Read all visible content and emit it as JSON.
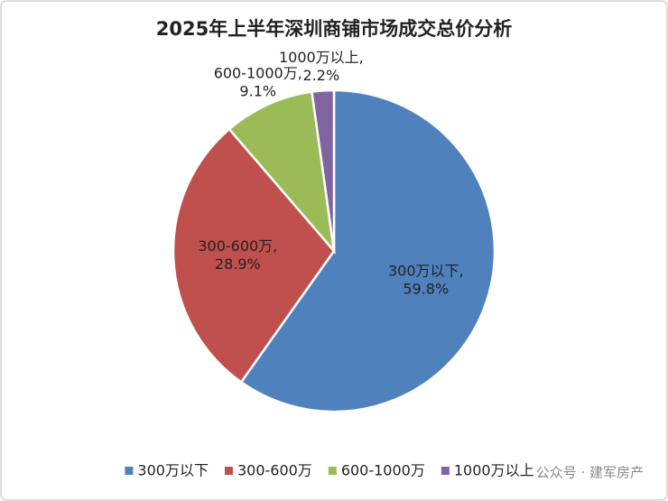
{
  "chart_data": {
    "type": "pie",
    "title": "2025年上半年深圳商铺市场成交总价分析",
    "categories": [
      "300万以下",
      "300-600万",
      "600-1000万",
      "1000万以上"
    ],
    "values": [
      59.8,
      28.9,
      9.1,
      2.2
    ],
    "value_labels": [
      "300万以下,\n59.8%",
      "300-600万,\n28.9%",
      "600-1000万,\n9.1%",
      "1000万以上,\n2.2%"
    ],
    "colors": [
      "#4f81bd",
      "#c0504d",
      "#9bbb59",
      "#8064a2"
    ],
    "legend": "bottom"
  },
  "watermark": "公众号 · 建军房产"
}
